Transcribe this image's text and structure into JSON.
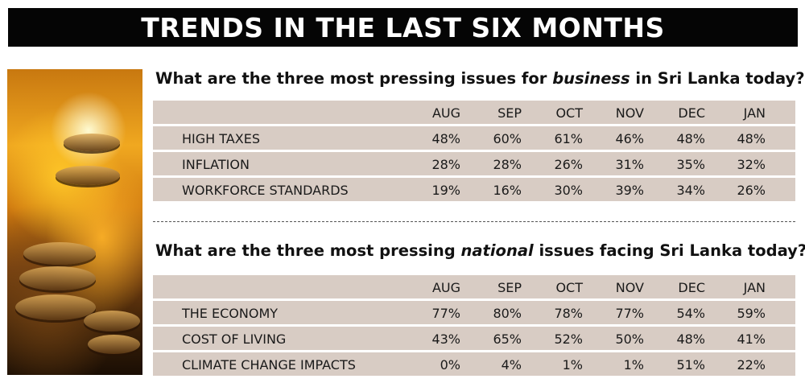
{
  "banner": {
    "title": "TRENDS IN THE LAST SIX MONTHS"
  },
  "business": {
    "question_pre": "What are the three most pressing issues for ",
    "question_em": "business",
    "question_post": " in Sri Lanka today?",
    "months": [
      "AUG",
      "SEP",
      "OCT",
      "NOV",
      "DEC",
      "JAN"
    ],
    "rows": [
      {
        "label": "HIGH TAXES",
        "values": [
          "48%",
          "60%",
          "61%",
          "46%",
          "48%",
          "48%"
        ]
      },
      {
        "label": "INFLATION",
        "values": [
          "28%",
          "28%",
          "26%",
          "31%",
          "35%",
          "32%"
        ]
      },
      {
        "label": "WORKFORCE STANDARDS",
        "values": [
          "19%",
          "16%",
          "30%",
          "39%",
          "34%",
          "26%"
        ]
      }
    ]
  },
  "national": {
    "question_pre": "What are the three most pressing ",
    "question_em": "national",
    "question_post": " issues facing Sri Lanka today?",
    "months": [
      "AUG",
      "SEP",
      "OCT",
      "NOV",
      "DEC",
      "JAN"
    ],
    "rows": [
      {
        "label": "THE ECONOMY",
        "values": [
          "77%",
          "80%",
          "78%",
          "77%",
          "54%",
          "59%"
        ]
      },
      {
        "label": "COST OF LIVING",
        "values": [
          "43%",
          "65%",
          "52%",
          "50%",
          "48%",
          "41%"
        ]
      },
      {
        "label": "CLIMATE CHANGE IMPACTS",
        "values": [
          "0%",
          "4%",
          "1%",
          "1%",
          "51%",
          "22%"
        ]
      }
    ]
  },
  "colors": {
    "banner_bg": "#050505",
    "row_bg": "#d8ccc4"
  }
}
